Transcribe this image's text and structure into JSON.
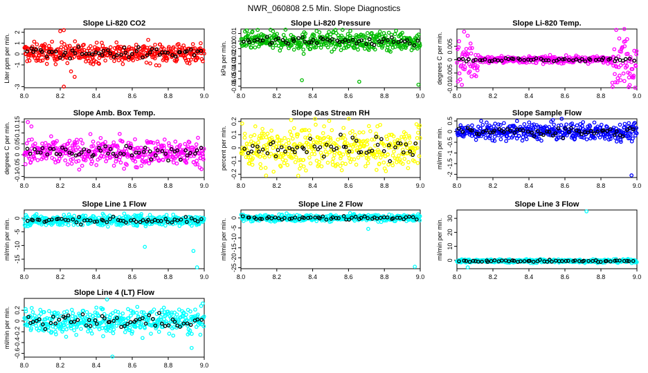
{
  "page_title": "NWR_060808  2.5 Min. Slope Diagnostics",
  "chart_data": [
    {
      "type": "scatter",
      "title": "Slope Li-820 CO2",
      "ylabel": "Liter ppm per min.",
      "xlim": [
        8.0,
        9.0
      ],
      "ylim": [
        -3.1,
        2.3
      ],
      "x_ticks": [
        8.0,
        8.2,
        8.4,
        8.6,
        8.8,
        9.0
      ],
      "y_ticks": [
        -3,
        -1,
        0,
        1,
        2
      ],
      "series_color": "#ff0000",
      "center": 0.1,
      "spread": 0.45,
      "outliers": [
        {
          "x": 8.2,
          "y": 2.1
        },
        {
          "x": 8.22,
          "y": 2.2
        },
        {
          "x": 8.26,
          "y": -1.6
        },
        {
          "x": 8.28,
          "y": -2.1
        },
        {
          "x": 8.22,
          "y": -3.0
        }
      ],
      "edge_spread": 0
    },
    {
      "type": "scatter",
      "title": "Slope Li-820 Pressure",
      "ylabel": "kPa per min.",
      "xlim": [
        8.0,
        9.0
      ],
      "ylim": [
        -0.062,
        0.016
      ],
      "x_ticks": [
        8.0,
        8.2,
        8.4,
        8.6,
        8.8,
        9.0
      ],
      "y_ticks": [
        -0.06,
        -0.05,
        -0.04,
        -0.03,
        -0.02,
        -0.01,
        0.0,
        0.01
      ],
      "series_color": "#00bb00",
      "center": 0.0,
      "spread": 0.006,
      "outliers": [
        {
          "x": 8.34,
          "y": -0.052
        },
        {
          "x": 8.66,
          "y": -0.054
        },
        {
          "x": 8.99,
          "y": -0.058
        },
        {
          "x": 8.35,
          "y": -0.017
        }
      ],
      "edge_spread": 0
    },
    {
      "type": "scatter",
      "title": "Slope Li-820 Temp.",
      "ylabel": "degrees C per min.",
      "xlim": [
        8.0,
        9.0
      ],
      "ylim": [
        -0.0105,
        0.0115
      ],
      "x_ticks": [
        8.0,
        8.2,
        8.4,
        8.6,
        8.8,
        9.0
      ],
      "y_ticks": [
        -0.01,
        -0.005,
        0.0,
        0.005
      ],
      "series_color": "#ff00ff",
      "center": 0.0,
      "spread": 0.0006,
      "outliers": [
        {
          "x": 8.04,
          "y": 0.0105
        },
        {
          "x": 8.93,
          "y": 0.0115
        },
        {
          "x": 8.96,
          "y": -0.0095
        }
      ],
      "edge_spread": 0.004
    },
    {
      "type": "scatter",
      "title": "Slope Amb. Box Temp.",
      "ylabel": "degrees C per min.",
      "xlim": [
        8.0,
        9.0
      ],
      "ylim": [
        -0.105,
        0.165
      ],
      "x_ticks": [
        8.0,
        8.2,
        8.4,
        8.6,
        8.8,
        9.0
      ],
      "y_ticks": [
        -0.1,
        -0.05,
        0.0,
        0.05,
        0.1,
        0.15
      ],
      "series_color": "#ff00ff",
      "center": 0.01,
      "spread": 0.03,
      "outliers": [
        {
          "x": 8.02,
          "y": 0.15
        },
        {
          "x": 8.04,
          "y": 0.13
        }
      ],
      "edge_spread": 0
    },
    {
      "type": "scatter",
      "title": "Slope Gas Stream RH",
      "ylabel": "percent per min.",
      "xlim": [
        8.0,
        9.0
      ],
      "ylim": [
        -0.225,
        0.22
      ],
      "x_ticks": [
        8.0,
        8.2,
        8.4,
        8.6,
        8.8,
        9.0
      ],
      "y_ticks": [
        -0.2,
        -0.1,
        0.0,
        0.1,
        0.2
      ],
      "series_color": "#ffff00",
      "center": 0.0,
      "spread": 0.08,
      "outliers": [
        {
          "x": 8.28,
          "y": 0.21
        },
        {
          "x": 8.14,
          "y": -0.21
        }
      ],
      "edge_spread": 0
    },
    {
      "type": "scatter",
      "title": "Slope Sample Flow",
      "ylabel": "ml/min per min.",
      "xlim": [
        8.0,
        9.0
      ],
      "ylim": [
        -2.15,
        0.6
      ],
      "x_ticks": [
        8.0,
        8.2,
        8.4,
        8.6,
        8.8,
        9.0
      ],
      "y_ticks": [
        -2,
        -1.5,
        -1,
        -0.5,
        0.0,
        0.5
      ],
      "series_color": "#0000ff",
      "center": 0.0,
      "spread": 0.2,
      "outliers": [
        {
          "x": 8.97,
          "y": -2.05
        }
      ],
      "edge_spread": 0
    },
    {
      "type": "scatter",
      "title": "Slope Line 1 Flow",
      "ylabel": "ml/min per min.",
      "xlim": [
        8.0,
        9.0
      ],
      "ylim": [
        -18.5,
        3.0
      ],
      "x_ticks": [
        8.0,
        8.2,
        8.4,
        8.6,
        8.8,
        9.0
      ],
      "y_ticks": [
        -15,
        -10,
        -5,
        0
      ],
      "series_color": "#00ffff",
      "center": -0.8,
      "spread": 1.0,
      "outliers": [
        {
          "x": 8.96,
          "y": -18.0
        },
        {
          "x": 8.94,
          "y": -12.0
        },
        {
          "x": 8.67,
          "y": -10.5
        }
      ],
      "edge_spread": 0
    },
    {
      "type": "scatter",
      "title": "Slope Line 2 Flow",
      "ylabel": "ml/min per min.",
      "xlim": [
        8.0,
        9.0
      ],
      "ylim": [
        -25.5,
        4.0
      ],
      "x_ticks": [
        8.0,
        8.2,
        8.4,
        8.6,
        8.8,
        9.0
      ],
      "y_ticks": [
        -25,
        -20,
        -15,
        -10,
        -5,
        0
      ],
      "series_color": "#00ffff",
      "center": 0.0,
      "spread": 0.8,
      "outliers": [
        {
          "x": 8.97,
          "y": -24.5
        },
        {
          "x": 8.71,
          "y": -5.5
        }
      ],
      "edge_spread": 0
    },
    {
      "type": "scatter",
      "title": "Slope Line 3 Flow",
      "ylabel": "ml/min per min.",
      "xlim": [
        8.0,
        9.0
      ],
      "ylim": [
        -6.0,
        36.0
      ],
      "x_ticks": [
        8.0,
        8.2,
        8.4,
        8.6,
        8.8,
        9.0
      ],
      "y_ticks": [
        0,
        10,
        20,
        30
      ],
      "series_color": "#00ffff",
      "center": -0.5,
      "spread": 0.6,
      "outliers": [
        {
          "x": 8.72,
          "y": 35.0
        },
        {
          "x": 8.06,
          "y": -5.0
        }
      ],
      "edge_spread": 0
    },
    {
      "type": "scatter",
      "title": "Slope Line 4 (LT) Flow",
      "ylabel": "ml/min per min.",
      "xlim": [
        8.0,
        9.0
      ],
      "ylim": [
        -0.67,
        0.42
      ],
      "x_ticks": [
        8.0,
        8.2,
        8.4,
        8.6,
        8.8,
        9.0
      ],
      "y_ticks": [
        -0.6,
        -0.4,
        -0.2,
        0.0,
        0.2
      ],
      "series_color": "#00ffff",
      "center": 0.0,
      "spread": 0.12,
      "outliers": [
        {
          "x": 8.46,
          "y": 0.4
        },
        {
          "x": 8.49,
          "y": -0.66
        },
        {
          "x": 8.93,
          "y": -0.5
        }
      ],
      "edge_spread": 0
    }
  ]
}
